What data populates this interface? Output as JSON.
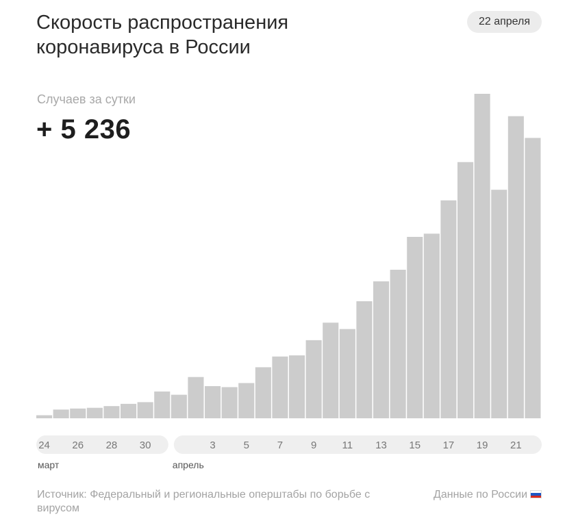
{
  "header": {
    "title": "Скорость распространения коронавируса в России",
    "date_badge": "22 апреля"
  },
  "metric": {
    "label": "Случаев за сутки",
    "value": "+ 5 236"
  },
  "footer": {
    "source": "Источник: Федеральный и региональные оперштабы по борьбе с вирусом",
    "data_region": "Данные по России",
    "flag_icon": "russia-flag-icon"
  },
  "colors": {
    "bar": "#cccccc",
    "axis_pill": "#efefef",
    "axis_text": "#777777"
  },
  "chart_data": {
    "type": "bar",
    "categories": [
      "24",
      "25",
      "26",
      "27",
      "28",
      "29",
      "30",
      "31",
      "1",
      "2",
      "3",
      "4",
      "5",
      "6",
      "7",
      "8",
      "9",
      "10",
      "11",
      "12",
      "13",
      "14",
      "15",
      "16",
      "17",
      "18",
      "19",
      "20",
      "21",
      "22"
    ],
    "tick_labels": [
      "24",
      "26",
      "28",
      "30",
      "3",
      "5",
      "7",
      "9",
      "11",
      "13",
      "15",
      "17",
      "19",
      "21"
    ],
    "tick_categories": [
      "24",
      "26",
      "28",
      "30",
      "3",
      "5",
      "7",
      "9",
      "11",
      "13",
      "15",
      "17",
      "19",
      "21"
    ],
    "month_labels": [
      {
        "label": "март",
        "category": "24"
      },
      {
        "label": "апрель",
        "category": "1"
      }
    ],
    "values": [
      57,
      163,
      182,
      196,
      228,
      270,
      302,
      501,
      440,
      771,
      601,
      582,
      658,
      954,
      1154,
      1175,
      1459,
      1786,
      1667,
      2186,
      2558,
      2774,
      3388,
      3448,
      4070,
      4785,
      6060,
      4268,
      5642,
      5236
    ],
    "title": "Скорость распространения коронавируса в России",
    "ylim": [
      0,
      6060
    ],
    "grid": false,
    "legend": "none"
  }
}
